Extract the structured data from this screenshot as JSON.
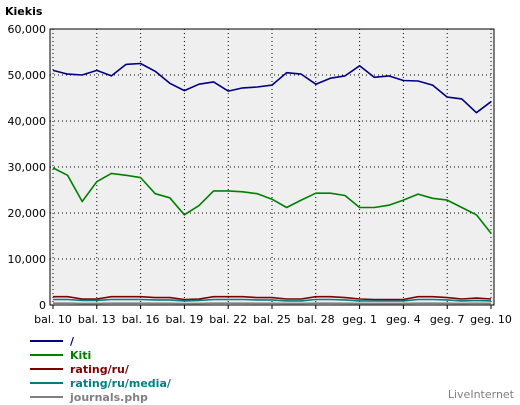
{
  "chart_data": {
    "type": "line",
    "title": "Kiekis",
    "xlabel": "",
    "ylabel": "",
    "ylim": [
      0,
      60000
    ],
    "grid": true,
    "y_ticks": [
      "0",
      "10,000",
      "20,000",
      "30,000",
      "40,000",
      "50,000",
      "60,000"
    ],
    "x_tick_labels": [
      "bal. 10",
      "bal. 13",
      "bal. 16",
      "bal. 19",
      "bal. 22",
      "bal. 25",
      "bal. 28",
      "geg. 1",
      "geg. 4",
      "geg. 7",
      "geg. 10"
    ],
    "x": [
      "bal. 10",
      "bal. 11",
      "bal. 12",
      "bal. 13",
      "bal. 14",
      "bal. 15",
      "bal. 16",
      "bal. 17",
      "bal. 18",
      "bal. 19",
      "bal. 20",
      "bal. 21",
      "bal. 22",
      "bal. 23",
      "bal. 24",
      "bal. 25",
      "bal. 26",
      "bal. 27",
      "bal. 28",
      "bal. 29",
      "bal. 30",
      "geg. 1",
      "geg. 2",
      "geg. 3",
      "geg. 4",
      "geg. 5",
      "geg. 6",
      "geg. 7",
      "geg. 8",
      "geg. 9",
      "geg. 10"
    ],
    "legend_position": "bottom-left",
    "series": [
      {
        "name": "/",
        "color": "#000080",
        "values": [
          51000,
          50200,
          50000,
          51000,
          49800,
          52300,
          52500,
          50800,
          48200,
          46600,
          48000,
          48500,
          46500,
          47200,
          47400,
          47800,
          50500,
          50200,
          48000,
          49300,
          49800,
          52000,
          49500,
          49800,
          48800,
          48700,
          47800,
          45200,
          44800,
          41800,
          44200
        ]
      },
      {
        "name": "Kiti",
        "color": "#008000",
        "values": [
          29800,
          28200,
          22500,
          26800,
          28600,
          28200,
          27700,
          24200,
          23300,
          19600,
          21600,
          24800,
          24800,
          24600,
          24200,
          23000,
          21200,
          22800,
          24300,
          24300,
          23800,
          21200,
          21200,
          21700,
          22800,
          24100,
          23200,
          22800,
          21200,
          19600,
          15600
        ]
      },
      {
        "name": "rating/ru/",
        "color": "#800000",
        "values": [
          1800,
          1800,
          1300,
          1300,
          1800,
          1800,
          1800,
          1600,
          1600,
          1200,
          1300,
          1800,
          1800,
          1800,
          1600,
          1600,
          1300,
          1300,
          1800,
          1800,
          1600,
          1300,
          1200,
          1200,
          1200,
          1800,
          1800,
          1600,
          1300,
          1500,
          1300
        ]
      },
      {
        "name": "rating/ru/media/",
        "color": "#008080",
        "values": [
          1200,
          1200,
          1000,
          1000,
          1200,
          1200,
          1200,
          1100,
          1100,
          900,
          1000,
          1200,
          1200,
          1200,
          1100,
          1100,
          900,
          900,
          1200,
          1200,
          1100,
          900,
          900,
          900,
          900,
          1200,
          1200,
          1100,
          900,
          1000,
          900
        ]
      },
      {
        "name": "journals.php",
        "color": "#808080",
        "values": [
          400,
          400,
          350,
          350,
          400,
          400,
          400,
          380,
          380,
          330,
          350,
          400,
          400,
          400,
          380,
          380,
          340,
          340,
          400,
          400,
          380,
          340,
          340,
          340,
          340,
          400,
          400,
          380,
          340,
          360,
          340
        ]
      }
    ]
  },
  "brand": "LiveInternet"
}
